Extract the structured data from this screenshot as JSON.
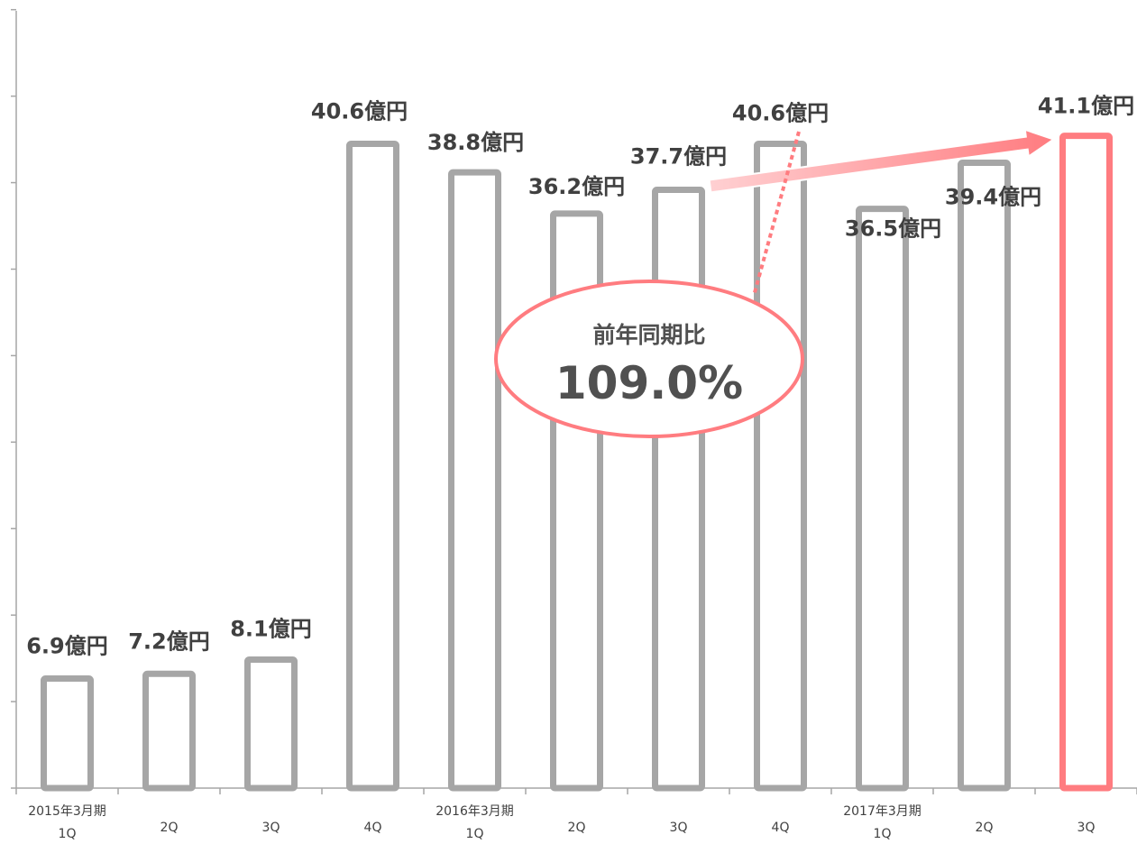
{
  "chart_data": {
    "type": "bar",
    "title": "",
    "xlabel": "",
    "ylabel": "",
    "ylim": [
      0,
      45
    ],
    "categories": [
      "1Q",
      "2Q",
      "3Q",
      "4Q",
      "1Q",
      "2Q",
      "3Q",
      "4Q",
      "1Q",
      "2Q",
      "3Q"
    ],
    "periods": [
      {
        "label": "2015年3月期",
        "start_index": 0
      },
      {
        "label": "2016年3月期",
        "start_index": 4
      },
      {
        "label": "2017年3月期",
        "start_index": 8
      }
    ],
    "values": [
      6.9,
      7.2,
      8.1,
      40.6,
      38.8,
      36.2,
      37.7,
      40.6,
      36.5,
      39.4,
      41.1
    ],
    "value_labels": [
      "6.9億円",
      "7.2億円",
      "8.1億円",
      "40.6億円",
      "38.8億円",
      "36.2億円",
      "37.7億円",
      "40.6億円",
      "36.5億円",
      "39.4億円",
      "41.1億円"
    ],
    "highlight_index": 10,
    "grid": false,
    "colors": {
      "bar": "#a6a6a6",
      "highlight": "#ff7c80",
      "axis": "#a6a6a6",
      "text": "#404040"
    },
    "annotation": {
      "title": "前年同期比",
      "value": "109.0%",
      "from_index": 6,
      "to_index": 10
    }
  }
}
